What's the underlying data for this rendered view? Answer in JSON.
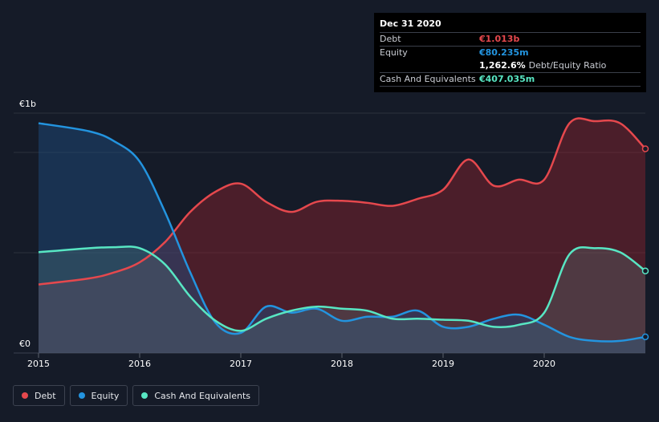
{
  "chart_data": {
    "type": "area",
    "x_labels": [
      "2015",
      "2016",
      "2017",
      "2018",
      "2019",
      "2020"
    ],
    "y_labels": {
      "top": "€1b",
      "bottom": "€0"
    },
    "ylim": [
      0,
      1.19
    ],
    "xlim": [
      2015.0,
      2021.0
    ],
    "series": [
      {
        "name": "Debt",
        "color": "#e5484d",
        "fill": "rgba(162,38,48,0.38)",
        "x": [
          2015.0,
          2015.5,
          2015.75,
          2016.0,
          2016.25,
          2016.5,
          2016.75,
          2017.0,
          2017.25,
          2017.5,
          2017.75,
          2018.0,
          2018.25,
          2018.5,
          2018.75,
          2019.0,
          2019.25,
          2019.5,
          2019.75,
          2020.0,
          2020.25,
          2020.5,
          2020.75,
          2021.0
        ],
        "values": [
          0.34,
          0.37,
          0.4,
          0.45,
          0.55,
          0.7,
          0.8,
          0.84,
          0.75,
          0.7,
          0.75,
          0.755,
          0.745,
          0.73,
          0.765,
          0.81,
          0.96,
          0.83,
          0.86,
          0.86,
          1.14,
          1.15,
          1.14,
          1.013
        ]
      },
      {
        "name": "Equity",
        "color": "#2394df",
        "fill": "rgba(32,80,130,0.45)",
        "x": [
          2015.0,
          2015.5,
          2015.75,
          2016.0,
          2016.25,
          2016.5,
          2016.75,
          2017.0,
          2017.25,
          2017.5,
          2017.75,
          2018.0,
          2018.25,
          2018.5,
          2018.75,
          2019.0,
          2019.25,
          2019.5,
          2019.75,
          2020.0,
          2020.25,
          2020.5,
          2020.75,
          2021.0
        ],
        "values": [
          1.14,
          1.1,
          1.05,
          0.95,
          0.7,
          0.4,
          0.15,
          0.1,
          0.23,
          0.2,
          0.22,
          0.16,
          0.18,
          0.18,
          0.21,
          0.13,
          0.13,
          0.17,
          0.19,
          0.14,
          0.08,
          0.06,
          0.06,
          0.080235
        ]
      },
      {
        "name": "Cash And Equivalents",
        "color": "#58e6c3",
        "fill": "rgba(90,130,130,0.28)",
        "x": [
          2015.0,
          2015.5,
          2015.75,
          2016.0,
          2016.25,
          2016.5,
          2016.75,
          2017.0,
          2017.25,
          2017.5,
          2017.75,
          2018.0,
          2018.25,
          2018.5,
          2018.75,
          2019.0,
          2019.25,
          2019.5,
          2019.75,
          2020.0,
          2020.25,
          2020.5,
          2020.75,
          2021.0
        ],
        "values": [
          0.5,
          0.52,
          0.525,
          0.52,
          0.44,
          0.28,
          0.16,
          0.11,
          0.17,
          0.21,
          0.23,
          0.22,
          0.21,
          0.17,
          0.17,
          0.165,
          0.16,
          0.13,
          0.14,
          0.2,
          0.49,
          0.52,
          0.5,
          0.407035
        ]
      }
    ]
  },
  "tooltip": {
    "date": "Dec 31 2020",
    "rows": [
      {
        "label": "Debt",
        "value": "€1.013b",
        "color": "#e5484d"
      },
      {
        "label": "Equity",
        "value": "€80.235m",
        "color": "#2394df"
      },
      {
        "label": "",
        "value": "1,262.6%",
        "suffix": "Debt/Equity Ratio",
        "color": "#ffffff"
      },
      {
        "label": "Cash And Equivalents",
        "value": "€407.035m",
        "color": "#58e6c3"
      }
    ]
  },
  "legend": [
    {
      "label": "Debt",
      "color": "#e5484d"
    },
    {
      "label": "Equity",
      "color": "#2394df"
    },
    {
      "label": "Cash And Equivalents",
      "color": "#58e6c3"
    }
  ]
}
